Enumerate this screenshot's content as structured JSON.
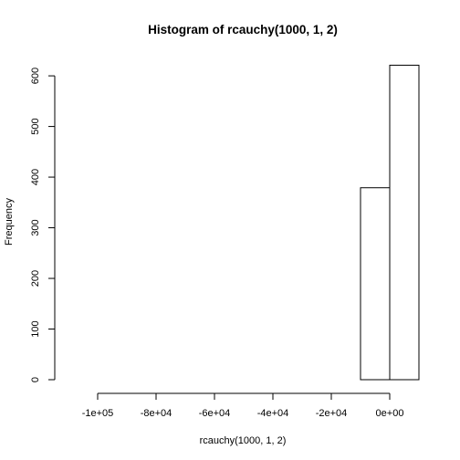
{
  "chart_data": {
    "type": "bar",
    "subtype": "histogram",
    "title": "Histogram of rcauchy(1000, 1, 2)",
    "xlabel": "rcauchy(1000, 1, 2)",
    "ylabel": "Frequency",
    "xlim": [
      -110000,
      10000
    ],
    "ylim": [
      0,
      620
    ],
    "bins": [
      {
        "from": -110000,
        "to": -100000,
        "count": 0
      },
      {
        "from": -100000,
        "to": -90000,
        "count": 0
      },
      {
        "from": -90000,
        "to": -80000,
        "count": 0
      },
      {
        "from": -80000,
        "to": -70000,
        "count": 0
      },
      {
        "from": -70000,
        "to": -60000,
        "count": 0
      },
      {
        "from": -60000,
        "to": -50000,
        "count": 0
      },
      {
        "from": -50000,
        "to": -40000,
        "count": 0
      },
      {
        "from": -40000,
        "to": -30000,
        "count": 0
      },
      {
        "from": -30000,
        "to": -20000,
        "count": 0
      },
      {
        "from": -20000,
        "to": -10000,
        "count": 0
      },
      {
        "from": -10000,
        "to": 0,
        "count": 379
      },
      {
        "from": 0,
        "to": 10000,
        "count": 621
      }
    ],
    "x_ticks": [
      {
        "value": -100000,
        "label": "-1e+05"
      },
      {
        "value": -80000,
        "label": "-8e+04"
      },
      {
        "value": -60000,
        "label": "-6e+04"
      },
      {
        "value": -40000,
        "label": "-4e+04"
      },
      {
        "value": -20000,
        "label": "-2e+04"
      },
      {
        "value": 0,
        "label": "0e+00"
      }
    ],
    "y_ticks": [
      {
        "value": 0,
        "label": "0"
      },
      {
        "value": 100,
        "label": "100"
      },
      {
        "value": 200,
        "label": "200"
      },
      {
        "value": 300,
        "label": "300"
      },
      {
        "value": 400,
        "label": "400"
      },
      {
        "value": 500,
        "label": "500"
      },
      {
        "value": 600,
        "label": "600"
      }
    ],
    "grid": false,
    "legend": "none",
    "colors": {
      "bar_fill": "#ffffff",
      "bar_stroke": "#000000",
      "axis": "#000000"
    }
  }
}
